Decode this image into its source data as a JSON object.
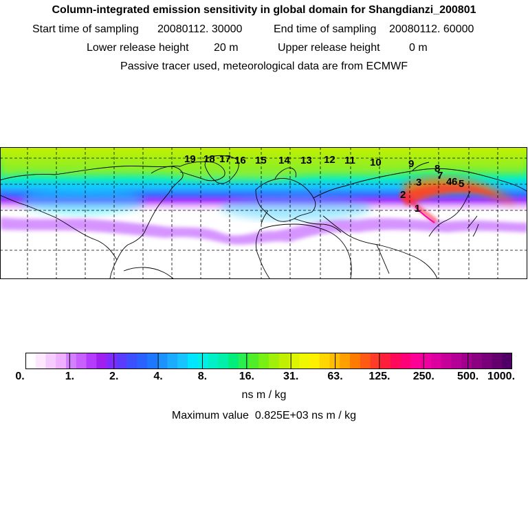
{
  "header": {
    "title": "Column-integrated emission sensitivity in global domain for Shangdianzi_200801",
    "start_label": "Start time of sampling",
    "start_value": "20080112. 30000",
    "end_label": "End time of sampling",
    "end_value": "20080112. 60000",
    "lower_label": "Lower release height",
    "lower_value": "20 m",
    "upper_label": "Upper release height",
    "upper_value": "0 m",
    "note": "Passive tracer used, meteorological data are from ECMWF"
  },
  "map": {
    "trajectory_labels": [
      "1",
      "2",
      "3",
      "4",
      "5",
      "6",
      "7",
      "8",
      "9",
      "10",
      "11",
      "12",
      "13",
      "14",
      "15",
      "16",
      "17",
      "18",
      "19"
    ],
    "colors": {
      "frame": "#000000",
      "grid": "#000000",
      "coast": "#000000",
      "trajectory": "#ff00aa"
    }
  },
  "colorbar": {
    "tick_labels": [
      "0.",
      "1.",
      "2.",
      "4.",
      "8.",
      "16.",
      "31.",
      "63.",
      "125.",
      "250.",
      "500.",
      "1000."
    ],
    "colors": [
      "#ffffff",
      "#fde8ff",
      "#f5ccff",
      "#eeb0ff",
      "#d280ff",
      "#c860ff",
      "#b43cff",
      "#a020f0",
      "#7f2cff",
      "#5a3cff",
      "#3c50ff",
      "#2a62ff",
      "#1e78ff",
      "#1c92ff",
      "#1cacff",
      "#18c4ff",
      "#00e6ff",
      "#00f0e8",
      "#00f0c8",
      "#00f0aa",
      "#00ee7c",
      "#28ee50",
      "#50ee28",
      "#78f014",
      "#a0f00a",
      "#c0f000",
      "#dcf500",
      "#eef800",
      "#fff000",
      "#ffd600",
      "#ffbc00",
      "#ffa000",
      "#ff7a00",
      "#ff5a14",
      "#ff3c28",
      "#ff1e3c",
      "#ff0a5a",
      "#ff0078",
      "#ff0096",
      "#f000a0",
      "#dc00a0",
      "#c8009a",
      "#b40096",
      "#a0008c",
      "#8c0082",
      "#780078",
      "#64006e",
      "#500064"
    ],
    "units": "ns m / kg",
    "max_label": "Maximum value",
    "max_value": "0.825E+03",
    "max_units": "ns m / kg"
  }
}
